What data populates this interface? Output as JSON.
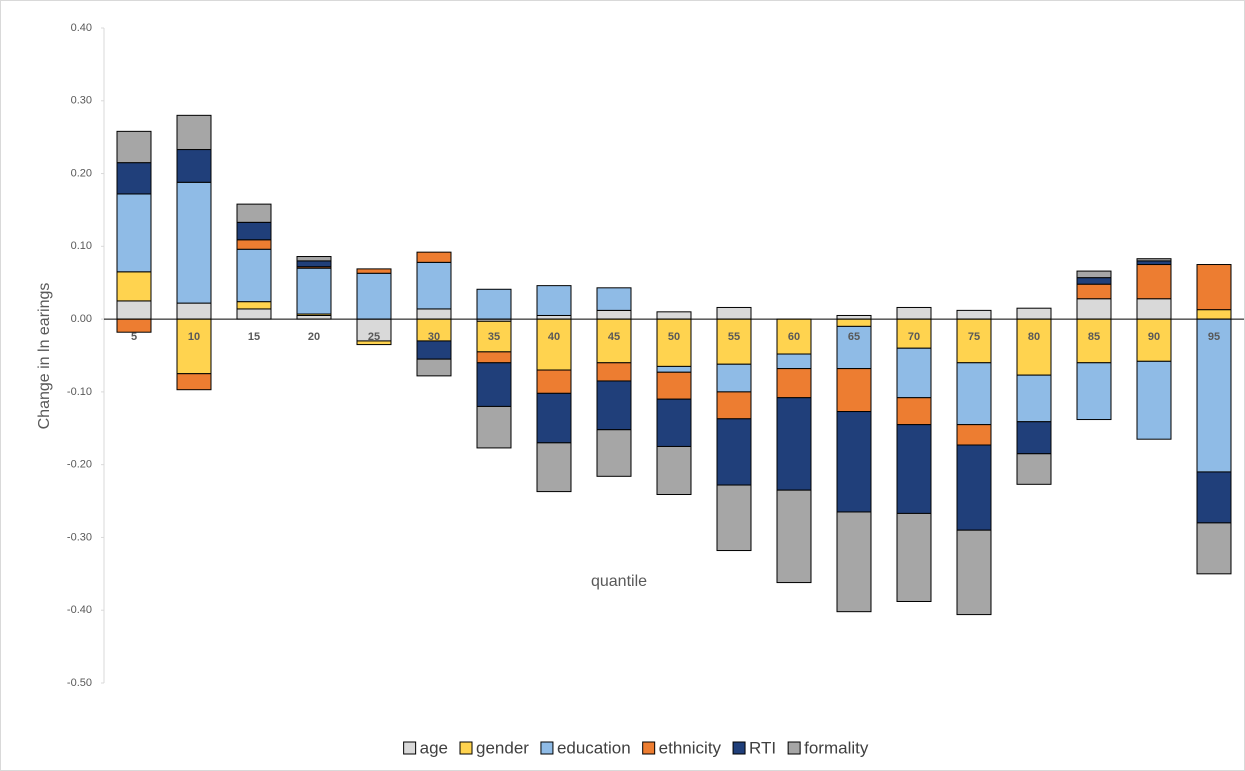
{
  "chart_data": {
    "type": "bar",
    "stacked": true,
    "y_label": "Change in ln earings",
    "x_label": "quantile",
    "categories": [
      "5",
      "10",
      "15",
      "20",
      "25",
      "30",
      "35",
      "40",
      "45",
      "50",
      "55",
      "60",
      "65",
      "70",
      "75",
      "80",
      "85",
      "90",
      "95"
    ],
    "series": [
      {
        "name": "age",
        "color": "#d9d9d9",
        "values": [
          0.025,
          0.022,
          0.014,
          0.005,
          -0.03,
          0.014,
          -0.003,
          0.005,
          0.012,
          0.01,
          0.016,
          0,
          0.005,
          0.016,
          0.012,
          0.015,
          0.028,
          0.028,
          0
        ]
      },
      {
        "name": "gender",
        "color": "#ffd34f",
        "values": [
          0.04,
          -0.075,
          0.01,
          0.002,
          -0.005,
          -0.03,
          -0.042,
          -0.07,
          -0.06,
          -0.065,
          -0.062,
          -0.048,
          -0.01,
          -0.04,
          -0.06,
          -0.077,
          -0.06,
          -0.058,
          0.013
        ]
      },
      {
        "name": "education",
        "color": "#8fbbe6",
        "values": [
          0.107,
          0.166,
          0.072,
          0.063,
          0.063,
          0.064,
          0.041,
          0.041,
          0.031,
          -0.008,
          -0.038,
          -0.02,
          -0.058,
          -0.068,
          -0.085,
          -0.064,
          -0.078,
          -0.107,
          -0.21
        ]
      },
      {
        "name": "ethnicity",
        "color": "#ed7d31",
        "values": [
          -0.018,
          -0.022,
          0.013,
          0.002,
          0.006,
          0.014,
          -0.015,
          -0.032,
          -0.025,
          -0.037,
          -0.037,
          -0.04,
          -0.059,
          -0.037,
          -0.028,
          0,
          0.02,
          0.047,
          0.062
        ]
      },
      {
        "name": "RTI",
        "color": "#203f7a",
        "values": [
          0.043,
          0.045,
          0.024,
          0.008,
          0,
          -0.025,
          -0.06,
          -0.068,
          -0.067,
          -0.065,
          -0.091,
          -0.127,
          -0.138,
          -0.122,
          -0.117,
          -0.044,
          0.009,
          0.005,
          -0.07
        ]
      },
      {
        "name": "formality",
        "color": "#a6a6a6",
        "values": [
          0.043,
          0.047,
          0.025,
          0.006,
          0,
          -0.023,
          -0.057,
          -0.067,
          -0.064,
          -0.066,
          -0.09,
          -0.127,
          -0.137,
          -0.121,
          -0.116,
          -0.042,
          0.009,
          0.003,
          -0.07
        ]
      }
    ],
    "ylim": [
      -0.5,
      0.4
    ],
    "yticks": [
      {
        "value": -0.5,
        "label": "-0.50"
      },
      {
        "value": -0.4,
        "label": "-0.40"
      },
      {
        "value": -0.3,
        "label": "-0.30"
      },
      {
        "value": -0.2,
        "label": "-0.20"
      },
      {
        "value": -0.1,
        "label": "-0.10"
      },
      {
        "value": 0,
        "label": "0.00"
      },
      {
        "value": 0.1,
        "label": "0.10"
      },
      {
        "value": 0.2,
        "label": "0.20"
      },
      {
        "value": 0.3,
        "label": "0.30"
      },
      {
        "value": 0.4,
        "label": "0.40"
      }
    ],
    "grid": false,
    "legend": "bottom"
  }
}
